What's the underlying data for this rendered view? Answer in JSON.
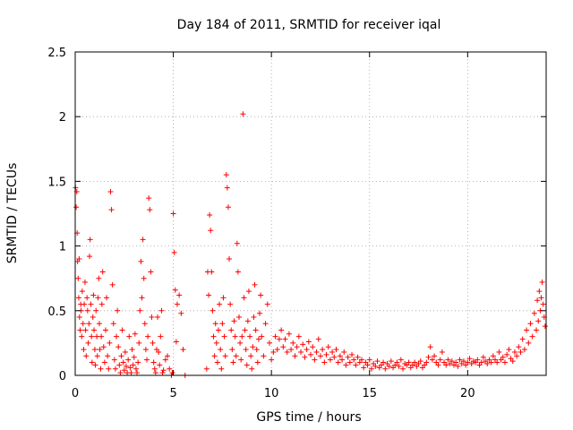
{
  "chart_data": {
    "type": "scatter",
    "title": "Day 184 of 2011, SRMTID for receiver iqal",
    "xlabel": "GPS time / hours",
    "ylabel": "SRMTID / TECUs",
    "xlim": [
      0,
      24
    ],
    "ylim": [
      0,
      2.5
    ],
    "xticks": [
      0,
      5,
      10,
      15,
      20
    ],
    "xtick_labels": [
      "0",
      "5",
      "10",
      "15",
      "20"
    ],
    "yticks": [
      0,
      0.5,
      1,
      1.5,
      2,
      2.5
    ],
    "ytick_labels": [
      "0",
      "0.5",
      "1",
      "1.5",
      "2",
      "2.5"
    ],
    "grid": true,
    "marker": "+",
    "series": [
      {
        "name": "SRMTID",
        "color": "#ff0000",
        "x": [
          0.02,
          0.05,
          0.08,
          0.1,
          0.12,
          0.15,
          0.18,
          0.2,
          0.22,
          0.25,
          0.28,
          0.3,
          0.33,
          0.36,
          0.4,
          0.43,
          0.46,
          0.5,
          0.53,
          0.56,
          0.6,
          0.63,
          0.66,
          0.7,
          0.73,
          0.76,
          0.8,
          0.83,
          0.86,
          0.9,
          0.93,
          0.96,
          1.0,
          1.03,
          1.06,
          1.1,
          1.13,
          1.16,
          1.2,
          1.23,
          1.26,
          1.3,
          1.33,
          1.36,
          1.4,
          1.45,
          1.5,
          1.55,
          1.6,
          1.65,
          1.7,
          1.75,
          1.8,
          1.85,
          1.9,
          1.95,
          2.0,
          2.05,
          2.1,
          2.15,
          2.2,
          2.25,
          2.3,
          2.35,
          2.4,
          2.45,
          2.5,
          2.55,
          2.6,
          2.65,
          2.7,
          2.75,
          2.8,
          2.85,
          2.9,
          2.95,
          3.0,
          3.05,
          3.1,
          3.15,
          3.2,
          3.25,
          3.3,
          3.35,
          3.4,
          3.45,
          3.5,
          3.55,
          3.6,
          3.65,
          3.7,
          3.75,
          3.8,
          3.85,
          3.9,
          3.95,
          4.0,
          4.05,
          4.1,
          4.15,
          4.2,
          4.25,
          4.3,
          4.35,
          4.4,
          4.45,
          4.5,
          4.6,
          4.7,
          4.8,
          4.9,
          4.95,
          5.0,
          5.05,
          5.1,
          5.15,
          5.2,
          5.3,
          5.4,
          5.5,
          5.6,
          6.7,
          6.75,
          6.8,
          6.85,
          6.9,
          6.95,
          7.0,
          7.05,
          7.1,
          7.15,
          7.2,
          7.25,
          7.3,
          7.35,
          7.4,
          7.45,
          7.5,
          7.55,
          7.6,
          7.65,
          7.7,
          7.75,
          7.8,
          7.85,
          7.9,
          7.95,
          8.0,
          8.05,
          8.1,
          8.15,
          8.2,
          8.25,
          8.3,
          8.35,
          8.4,
          8.45,
          8.5,
          8.55,
          8.6,
          8.65,
          8.7,
          8.75,
          8.8,
          8.85,
          8.9,
          8.95,
          9.0,
          9.05,
          9.1,
          9.15,
          9.2,
          9.25,
          9.3,
          9.35,
          9.4,
          9.45,
          9.5,
          9.6,
          9.7,
          9.8,
          9.9,
          10.0,
          10.1,
          10.2,
          10.3,
          10.4,
          10.5,
          10.6,
          10.7,
          10.8,
          10.9,
          11.0,
          11.1,
          11.2,
          11.3,
          11.4,
          11.5,
          11.6,
          11.7,
          11.8,
          11.9,
          12.0,
          12.1,
          12.2,
          12.3,
          12.4,
          12.5,
          12.6,
          12.7,
          12.8,
          12.9,
          13.0,
          13.1,
          13.2,
          13.3,
          13.4,
          13.5,
          13.6,
          13.7,
          13.8,
          13.9,
          14.0,
          14.1,
          14.2,
          14.3,
          14.4,
          14.5,
          14.6,
          14.7,
          14.8,
          14.9,
          15.0,
          15.1,
          15.2,
          15.3,
          15.4,
          15.5,
          15.6,
          15.7,
          15.8,
          15.9,
          16.0,
          16.1,
          16.2,
          16.3,
          16.4,
          16.5,
          16.6,
          16.7,
          16.8,
          16.9,
          17.0,
          17.1,
          17.2,
          17.3,
          17.4,
          17.5,
          17.6,
          17.7,
          17.8,
          17.9,
          18.0,
          18.1,
          18.2,
          18.3,
          18.4,
          18.5,
          18.6,
          18.7,
          18.8,
          18.9,
          19.0,
          19.1,
          19.2,
          19.3,
          19.4,
          19.5,
          19.6,
          19.7,
          19.8,
          19.9,
          20.0,
          20.1,
          20.2,
          20.3,
          20.4,
          20.5,
          20.6,
          20.7,
          20.8,
          20.9,
          21.0,
          21.1,
          21.2,
          21.3,
          21.4,
          21.5,
          21.6,
          21.7,
          21.8,
          21.9,
          22.0,
          22.1,
          22.2,
          22.3,
          22.4,
          22.5,
          22.6,
          22.7,
          22.8,
          22.9,
          23.0,
          23.1,
          23.2,
          23.3,
          23.4,
          23.5,
          23.55,
          23.6,
          23.65,
          23.7,
          23.75,
          23.8,
          23.85,
          23.9,
          23.95
        ],
        "y": [
          1.45,
          1.3,
          1.42,
          1.1,
          0.88,
          0.75,
          0.6,
          0.9,
          0.45,
          0.35,
          0.55,
          0.5,
          0.3,
          0.65,
          0.4,
          0.2,
          0.55,
          0.72,
          0.35,
          0.15,
          0.6,
          0.5,
          0.25,
          0.4,
          0.92,
          1.05,
          0.55,
          0.3,
          0.1,
          0.45,
          0.62,
          0.35,
          0.2,
          0.08,
          0.5,
          0.3,
          0.15,
          0.6,
          0.75,
          0.4,
          0.2,
          0.05,
          0.3,
          0.55,
          0.8,
          0.22,
          0.1,
          0.35,
          0.6,
          0.15,
          0.05,
          0.25,
          1.42,
          1.28,
          0.7,
          0.4,
          0.12,
          0.05,
          0.3,
          0.5,
          0.22,
          0.08,
          0.02,
          0.15,
          0.35,
          0.1,
          0.04,
          0.18,
          0.07,
          0.02,
          0.12,
          0.3,
          0.06,
          0.02,
          0.2,
          0.08,
          0.14,
          0.32,
          0.05,
          0.02,
          0.1,
          0.25,
          0.5,
          0.88,
          0.6,
          1.05,
          0.75,
          0.4,
          0.2,
          0.12,
          0.3,
          1.37,
          1.28,
          0.8,
          0.45,
          0.25,
          0.1,
          0.05,
          0.02,
          0.2,
          0.45,
          0.18,
          0.08,
          0.3,
          0.5,
          0.02,
          0.04,
          0.12,
          0.15,
          0.05,
          0.0,
          0.02,
          1.25,
          0.95,
          0.66,
          0.26,
          0.55,
          0.62,
          0.48,
          0.2,
          0.0,
          0.05,
          0.8,
          0.62,
          1.24,
          1.12,
          0.8,
          0.5,
          0.3,
          0.15,
          0.4,
          0.25,
          0.1,
          0.35,
          0.55,
          0.2,
          0.05,
          0.4,
          0.6,
          0.3,
          0.15,
          1.55,
          1.45,
          1.3,
          0.9,
          0.55,
          0.35,
          0.2,
          0.1,
          0.42,
          0.3,
          0.15,
          1.02,
          0.8,
          0.45,
          0.25,
          0.12,
          0.3,
          2.02,
          0.6,
          0.35,
          0.2,
          0.08,
          0.42,
          0.65,
          0.3,
          0.15,
          0.05,
          0.22,
          0.45,
          0.7,
          0.35,
          0.2,
          0.1,
          0.28,
          0.48,
          0.62,
          0.3,
          0.15,
          0.4,
          0.55,
          0.25,
          0.12,
          0.18,
          0.3,
          0.2,
          0.28,
          0.35,
          0.22,
          0.28,
          0.18,
          0.32,
          0.2,
          0.25,
          0.15,
          0.22,
          0.3,
          0.18,
          0.24,
          0.14,
          0.2,
          0.26,
          0.16,
          0.22,
          0.12,
          0.18,
          0.28,
          0.15,
          0.2,
          0.1,
          0.16,
          0.22,
          0.12,
          0.18,
          0.14,
          0.2,
          0.1,
          0.15,
          0.12,
          0.18,
          0.08,
          0.14,
          0.1,
          0.16,
          0.12,
          0.08,
          0.14,
          0.1,
          0.12,
          0.06,
          0.1,
          0.08,
          0.12,
          0.05,
          0.09,
          0.07,
          0.11,
          0.06,
          0.08,
          0.1,
          0.05,
          0.09,
          0.07,
          0.11,
          0.06,
          0.08,
          0.1,
          0.07,
          0.12,
          0.05,
          0.09,
          0.08,
          0.1,
          0.06,
          0.08,
          0.1,
          0.07,
          0.09,
          0.11,
          0.06,
          0.08,
          0.1,
          0.14,
          0.22,
          0.12,
          0.15,
          0.1,
          0.08,
          0.12,
          0.18,
          0.1,
          0.08,
          0.12,
          0.09,
          0.11,
          0.08,
          0.1,
          0.07,
          0.12,
          0.09,
          0.11,
          0.08,
          0.1,
          0.13,
          0.09,
          0.11,
          0.1,
          0.12,
          0.08,
          0.1,
          0.14,
          0.11,
          0.09,
          0.12,
          0.1,
          0.15,
          0.12,
          0.1,
          0.18,
          0.12,
          0.14,
          0.1,
          0.16,
          0.2,
          0.13,
          0.11,
          0.18,
          0.15,
          0.22,
          0.18,
          0.28,
          0.2,
          0.35,
          0.25,
          0.4,
          0.3,
          0.48,
          0.35,
          0.58,
          0.42,
          0.65,
          0.5,
          0.6,
          0.72,
          0.55,
          0.45,
          0.38
        ]
      }
    ]
  }
}
